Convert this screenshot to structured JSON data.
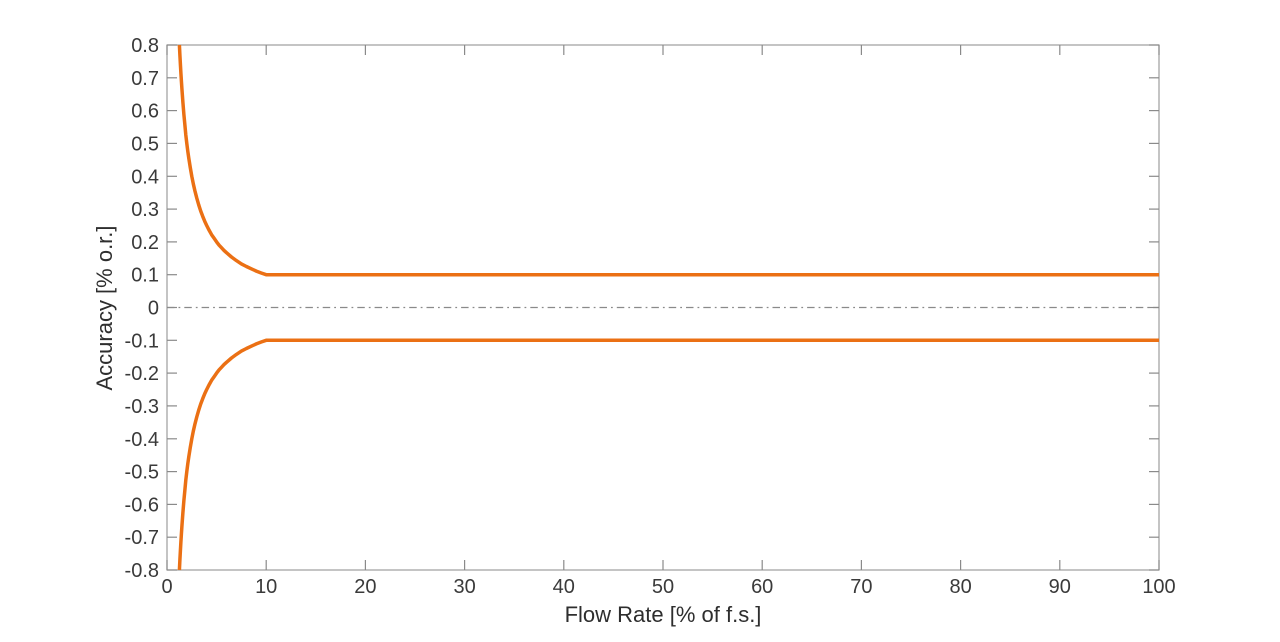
{
  "chart_data": {
    "type": "line",
    "title": "",
    "xlabel": "Flow Rate [% of f.s.]",
    "ylabel": "Accuracy [% o.r.]",
    "xlim": [
      0,
      100
    ],
    "ylim": [
      -0.8,
      0.8
    ],
    "x_ticks": [
      0,
      10,
      20,
      30,
      40,
      50,
      60,
      70,
      80,
      90,
      100
    ],
    "x_tick_labels": [
      "0",
      "10",
      "20",
      "30",
      "40",
      "50",
      "60",
      "70",
      "80",
      "90",
      "100"
    ],
    "y_ticks": [
      -0.8,
      -0.7,
      -0.6,
      -0.5,
      -0.4,
      -0.3,
      -0.2,
      -0.1,
      0,
      0.1,
      0.2,
      0.3,
      0.4,
      0.5,
      0.6,
      0.7,
      0.8
    ],
    "y_tick_labels": [
      "-0.8",
      "-0.7",
      "-0.6",
      "-0.5",
      "-0.4",
      "-0.3",
      "-0.2",
      "-0.1",
      "0",
      "0.1",
      "0.2",
      "0.3",
      "0.4",
      "0.5",
      "0.6",
      "0.7",
      "0.8"
    ],
    "grid": false,
    "box": true,
    "legend": "none",
    "style": {
      "background": "#ffffff",
      "axis_color": "#9d9d9d",
      "tick_color": "#8a8a8a",
      "text_color": "#3a3a3a",
      "accent_orange": "#eb7014"
    },
    "series": [
      {
        "name": "zero-reference-line",
        "color": "#8a8a8a",
        "line_width": 1.2,
        "line_style": "dash-dot",
        "points": [
          [
            0,
            0
          ],
          [
            100,
            0
          ]
        ]
      },
      {
        "name": "upper-accuracy-envelope",
        "color": "#eb7014",
        "line_width": 3.5,
        "line_style": "solid",
        "points": [
          [
            1.25,
            0.8
          ],
          [
            1.3,
            0.769
          ],
          [
            1.35,
            0.741
          ],
          [
            1.4,
            0.714
          ],
          [
            1.45,
            0.69
          ],
          [
            1.5,
            0.667
          ],
          [
            1.6,
            0.625
          ],
          [
            1.7,
            0.588
          ],
          [
            1.8,
            0.556
          ],
          [
            1.9,
            0.526
          ],
          [
            2,
            0.5
          ],
          [
            2.1,
            0.476
          ],
          [
            2.2,
            0.455
          ],
          [
            2.35,
            0.426
          ],
          [
            2.5,
            0.4
          ],
          [
            2.65,
            0.377
          ],
          [
            2.8,
            0.357
          ],
          [
            3,
            0.333
          ],
          [
            3.2,
            0.313
          ],
          [
            3.4,
            0.294
          ],
          [
            3.6,
            0.278
          ],
          [
            3.8,
            0.263
          ],
          [
            4,
            0.25
          ],
          [
            4.25,
            0.235
          ],
          [
            4.5,
            0.222
          ],
          [
            4.75,
            0.211
          ],
          [
            5,
            0.2
          ],
          [
            5.25,
            0.19
          ],
          [
            5.5,
            0.182
          ],
          [
            5.75,
            0.174
          ],
          [
            6,
            0.167
          ],
          [
            6.5,
            0.154
          ],
          [
            7,
            0.143
          ],
          [
            7.5,
            0.133
          ],
          [
            8,
            0.125
          ],
          [
            8.5,
            0.118
          ],
          [
            9,
            0.111
          ],
          [
            9.5,
            0.105
          ],
          [
            10,
            0.1
          ],
          [
            100,
            0.1
          ]
        ]
      },
      {
        "name": "lower-accuracy-envelope",
        "color": "#eb7014",
        "line_width": 3.5,
        "line_style": "solid",
        "points": [
          [
            1.25,
            -0.8
          ],
          [
            1.3,
            -0.769
          ],
          [
            1.35,
            -0.741
          ],
          [
            1.4,
            -0.714
          ],
          [
            1.45,
            -0.69
          ],
          [
            1.5,
            -0.667
          ],
          [
            1.6,
            -0.625
          ],
          [
            1.7,
            -0.588
          ],
          [
            1.8,
            -0.556
          ],
          [
            1.9,
            -0.526
          ],
          [
            2,
            -0.5
          ],
          [
            2.1,
            -0.476
          ],
          [
            2.2,
            -0.455
          ],
          [
            2.35,
            -0.426
          ],
          [
            2.5,
            -0.4
          ],
          [
            2.65,
            -0.377
          ],
          [
            2.8,
            -0.357
          ],
          [
            3,
            -0.333
          ],
          [
            3.2,
            -0.313
          ],
          [
            3.4,
            -0.294
          ],
          [
            3.6,
            -0.278
          ],
          [
            3.8,
            -0.263
          ],
          [
            4,
            -0.25
          ],
          [
            4.25,
            -0.235
          ],
          [
            4.5,
            -0.222
          ],
          [
            4.75,
            -0.211
          ],
          [
            5,
            -0.2
          ],
          [
            5.25,
            -0.19
          ],
          [
            5.5,
            -0.182
          ],
          [
            5.75,
            -0.174
          ],
          [
            6,
            -0.167
          ],
          [
            6.5,
            -0.154
          ],
          [
            7,
            -0.143
          ],
          [
            7.5,
            -0.133
          ],
          [
            8,
            -0.125
          ],
          [
            8.5,
            -0.118
          ],
          [
            9,
            -0.111
          ],
          [
            9.5,
            -0.105
          ],
          [
            10,
            -0.1
          ],
          [
            100,
            -0.1
          ]
        ]
      }
    ]
  }
}
